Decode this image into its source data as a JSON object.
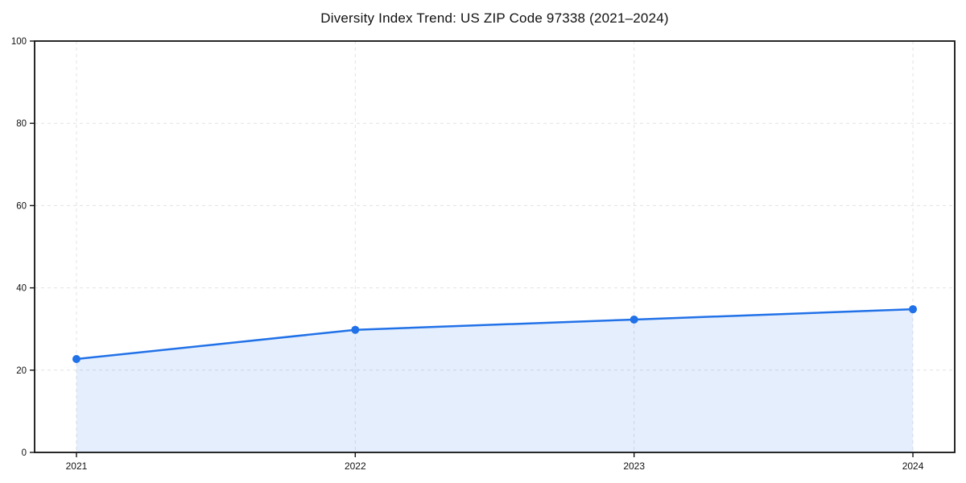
{
  "page": {
    "background": "#ffffff"
  },
  "chart_data": {
    "type": "area",
    "title": "Diversity Index Trend: US ZIP Code 97338 (2021–2024)",
    "categories": [
      "2021",
      "2022",
      "2023",
      "2024"
    ],
    "series": [
      {
        "name": "Diversity Index",
        "values": [
          22.7,
          29.8,
          32.3,
          34.8
        ]
      }
    ],
    "xlabel": "",
    "ylabel": "",
    "ylim": [
      0,
      100
    ],
    "yticks": [
      0,
      20,
      40,
      60,
      80,
      100
    ],
    "grid": true,
    "grid_style": "dashed",
    "legend": false,
    "colors": {
      "line": "#2171e8",
      "fill": "rgba(33, 113, 232, 0.12)",
      "grid": "#e2e2e2",
      "axis": "#111111",
      "tick_label": "#111111"
    }
  }
}
